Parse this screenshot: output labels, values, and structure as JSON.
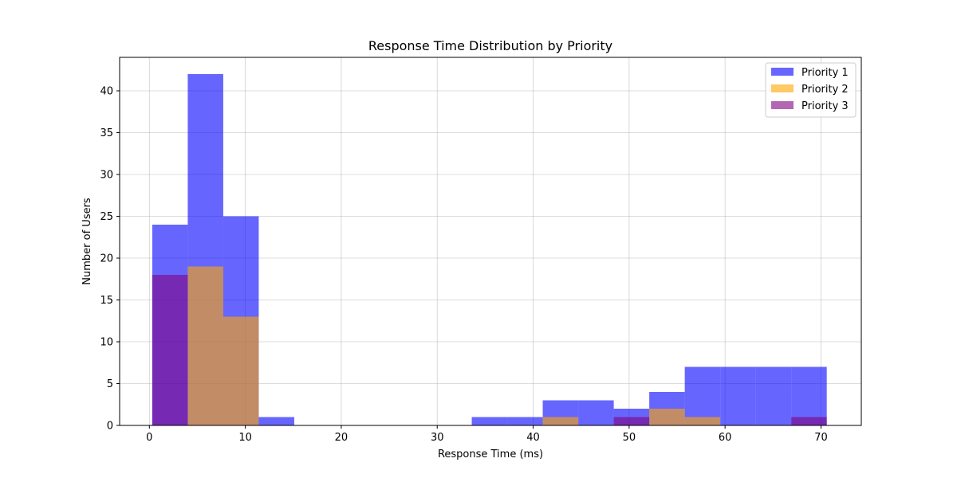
{
  "chart_data": {
    "type": "bar",
    "title": "Response Time Distribution by Priority",
    "xlabel": "Response Time (ms)",
    "ylabel": "Number of Users",
    "xlim": [
      -3.1,
      74.2
    ],
    "ylim": [
      0,
      44
    ],
    "xticks": [
      0,
      10,
      20,
      30,
      40,
      50,
      60,
      70
    ],
    "yticks": [
      0,
      5,
      10,
      15,
      20,
      25,
      30,
      35,
      40
    ],
    "grid": true,
    "legend_position": "top-right",
    "histogram": true,
    "series": [
      {
        "name": "Priority 1",
        "color": "#0000ff",
        "opacity": 0.6,
        "bins": [
          {
            "x0": 0.3,
            "x1": 4.0,
            "count": 24
          },
          {
            "x0": 4.0,
            "x1": 7.7,
            "count": 42
          },
          {
            "x0": 7.7,
            "x1": 11.4,
            "count": 25
          },
          {
            "x0": 11.4,
            "x1": 15.1,
            "count": 1
          },
          {
            "x0": 15.1,
            "x1": 18.8,
            "count": 0
          },
          {
            "x0": 18.8,
            "x1": 22.5,
            "count": 0
          },
          {
            "x0": 22.5,
            "x1": 26.2,
            "count": 0
          },
          {
            "x0": 26.2,
            "x1": 29.9,
            "count": 0
          },
          {
            "x0": 29.9,
            "x1": 33.6,
            "count": 0
          },
          {
            "x0": 33.6,
            "x1": 37.3,
            "count": 1
          },
          {
            "x0": 37.3,
            "x1": 41.0,
            "count": 1
          },
          {
            "x0": 41.0,
            "x1": 44.7,
            "count": 3
          },
          {
            "x0": 44.7,
            "x1": 48.4,
            "count": 3
          },
          {
            "x0": 48.4,
            "x1": 52.1,
            "count": 2
          },
          {
            "x0": 52.1,
            "x1": 55.8,
            "count": 4
          },
          {
            "x0": 55.8,
            "x1": 59.5,
            "count": 7
          },
          {
            "x0": 59.5,
            "x1": 63.2,
            "count": 7
          },
          {
            "x0": 63.2,
            "x1": 66.9,
            "count": 7
          },
          {
            "x0": 66.9,
            "x1": 70.6,
            "count": 7
          }
        ]
      },
      {
        "name": "Priority 2",
        "color": "#ffa500",
        "opacity": 0.6,
        "bins": [
          {
            "x0": 4.0,
            "x1": 7.7,
            "count": 19
          },
          {
            "x0": 7.7,
            "x1": 11.4,
            "count": 13
          },
          {
            "x0": 41.0,
            "x1": 44.7,
            "count": 1
          },
          {
            "x0": 52.1,
            "x1": 55.8,
            "count": 2
          },
          {
            "x0": 55.8,
            "x1": 59.5,
            "count": 1
          }
        ]
      },
      {
        "name": "Priority 3",
        "color": "#800080",
        "opacity": 0.6,
        "bins": [
          {
            "x0": 0.3,
            "x1": 4.0,
            "count": 18
          },
          {
            "x0": 48.4,
            "x1": 52.1,
            "count": 1
          },
          {
            "x0": 66.9,
            "x1": 70.6,
            "count": 1
          }
        ]
      }
    ]
  }
}
